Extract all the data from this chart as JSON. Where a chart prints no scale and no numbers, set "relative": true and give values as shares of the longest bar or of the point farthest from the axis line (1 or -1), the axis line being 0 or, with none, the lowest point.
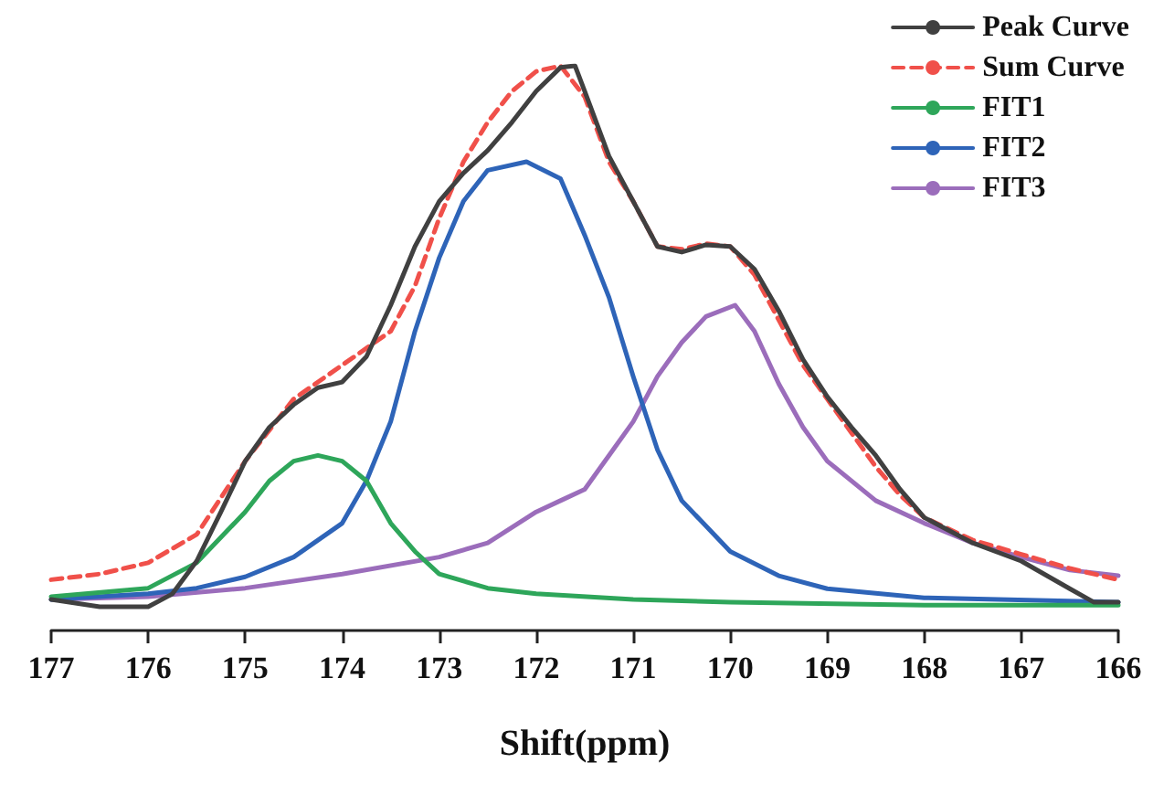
{
  "chart_data": {
    "type": "line",
    "xlabel": "Shift(ppm)",
    "relative": true,
    "grid": false,
    "legend": "top right",
    "marker": "none",
    "xlim": [
      177,
      166
    ],
    "xticks": [
      177,
      176,
      175,
      174,
      173,
      172,
      171,
      170,
      169,
      168,
      167,
      166
    ],
    "series": [
      {
        "name": "Peak Curve",
        "color": "#404040",
        "line_style": "solid",
        "x": [
          177,
          176.5,
          176,
          175.75,
          175.5,
          175.25,
          175,
          174.75,
          174.5,
          174.25,
          174,
          173.75,
          173.5,
          173.25,
          173,
          172.75,
          172.5,
          172.25,
          172,
          171.75,
          171.6,
          171.5,
          171.25,
          171,
          170.75,
          170.5,
          170.25,
          170,
          169.75,
          169.5,
          169.25,
          169,
          168.75,
          168.5,
          168.25,
          168,
          167.5,
          167,
          166.5,
          166.25,
          166
        ],
        "values": [
          0.055,
          0.042,
          0.042,
          0.065,
          0.123,
          0.21,
          0.3,
          0.36,
          0.4,
          0.43,
          0.44,
          0.485,
          0.576,
          0.68,
          0.76,
          0.81,
          0.85,
          0.9,
          0.955,
          0.997,
          1.0,
          0.955,
          0.84,
          0.76,
          0.68,
          0.67,
          0.683,
          0.68,
          0.64,
          0.566,
          0.48,
          0.414,
          0.36,
          0.31,
          0.25,
          0.2,
          0.155,
          0.123,
          0.074,
          0.05,
          0.05
        ]
      },
      {
        "name": "Sum Curve",
        "color": "#f0504a",
        "line_style": "dashed",
        "x": [
          177,
          176.5,
          176,
          175.5,
          175,
          174.5,
          174,
          173.5,
          173.25,
          173,
          172.75,
          172.5,
          172.25,
          172,
          171.75,
          171.5,
          171.25,
          171,
          170.75,
          170.5,
          170.25,
          170,
          169.75,
          169.5,
          169.25,
          169,
          168.75,
          168.5,
          168.25,
          168,
          167.5,
          167,
          166.5,
          166
        ],
        "values": [
          0.09,
          0.1,
          0.12,
          0.17,
          0.3,
          0.41,
          0.47,
          0.53,
          0.61,
          0.73,
          0.83,
          0.9,
          0.955,
          0.99,
          1.0,
          0.945,
          0.83,
          0.76,
          0.68,
          0.675,
          0.685,
          0.68,
          0.63,
          0.55,
          0.47,
          0.41,
          0.35,
          0.29,
          0.24,
          0.2,
          0.16,
          0.135,
          0.11,
          0.09
        ]
      },
      {
        "name": "FIT1",
        "color": "#2ea65a",
        "line_style": "solid",
        "x": [
          177,
          176,
          175.5,
          175,
          174.75,
          174.5,
          174.25,
          174,
          173.75,
          173.5,
          173.25,
          173,
          172.5,
          172,
          171,
          170,
          168,
          166
        ],
        "values": [
          0.06,
          0.075,
          0.12,
          0.21,
          0.265,
          0.3,
          0.31,
          0.3,
          0.265,
          0.19,
          0.14,
          0.1,
          0.075,
          0.065,
          0.055,
          0.05,
          0.045,
          0.045
        ]
      },
      {
        "name": "FIT2",
        "color": "#2e64b8",
        "line_style": "solid",
        "x": [
          177,
          176,
          175.5,
          175,
          174.5,
          174,
          173.75,
          173.5,
          173.25,
          173,
          172.75,
          172.5,
          172.1,
          171.75,
          171.5,
          171.25,
          171,
          170.75,
          170.5,
          170,
          169.5,
          169,
          168,
          166
        ],
        "values": [
          0.055,
          0.065,
          0.075,
          0.095,
          0.13,
          0.19,
          0.265,
          0.37,
          0.53,
          0.66,
          0.76,
          0.815,
          0.83,
          0.8,
          0.7,
          0.59,
          0.45,
          0.32,
          0.23,
          0.14,
          0.097,
          0.074,
          0.058,
          0.05
        ]
      },
      {
        "name": "FIT3",
        "color": "#9b6dbb",
        "line_style": "solid",
        "x": [
          177,
          176,
          175,
          174,
          173,
          172.5,
          172,
          171.75,
          171.5,
          171.25,
          171,
          170.75,
          170.5,
          170.25,
          169.95,
          169.75,
          169.5,
          169.25,
          169,
          168.5,
          168,
          167.5,
          167,
          166.5,
          166
        ],
        "values": [
          0.055,
          0.06,
          0.075,
          0.1,
          0.13,
          0.155,
          0.21,
          0.23,
          0.25,
          0.31,
          0.37,
          0.45,
          0.51,
          0.556,
          0.576,
          0.53,
          0.437,
          0.36,
          0.3,
          0.23,
          0.19,
          0.155,
          0.13,
          0.107,
          0.097
        ]
      }
    ]
  }
}
